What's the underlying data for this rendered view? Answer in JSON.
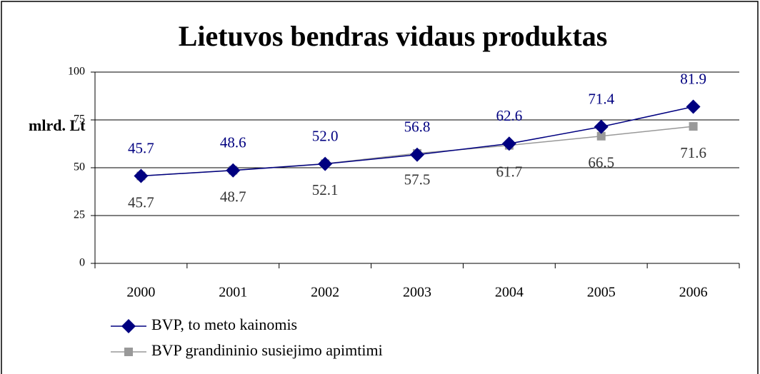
{
  "chart_data": {
    "type": "line",
    "title": "Lietuvos bendras vidaus produktas",
    "y_label": "mlrd. Lt",
    "categories": [
      "2000",
      "2001",
      "2002",
      "2003",
      "2004",
      "2005",
      "2006"
    ],
    "series": [
      {
        "name": "BVP, to meto kainomis",
        "color": "#000080",
        "marker": "diamond",
        "values": [
          45.7,
          48.6,
          52.0,
          56.8,
          62.6,
          71.4,
          81.9
        ],
        "value_labels": [
          "45.7",
          "48.6",
          "52.0",
          "56.8",
          "62.6",
          "71.4",
          "81.9"
        ]
      },
      {
        "name": "BVP grandininio susiejimo apimtimi",
        "color": "#999999",
        "marker": "square",
        "values": [
          45.7,
          48.7,
          52.1,
          57.5,
          61.7,
          66.5,
          71.6
        ],
        "value_labels": [
          "45.7",
          "48.7",
          "52.1",
          "57.5",
          "61.7",
          "66.5",
          "71.6"
        ]
      }
    ],
    "ylim": [
      0,
      100
    ],
    "yticks": [
      0,
      25,
      50,
      75,
      100
    ],
    "grid": true,
    "legend": "bottom-left"
  }
}
